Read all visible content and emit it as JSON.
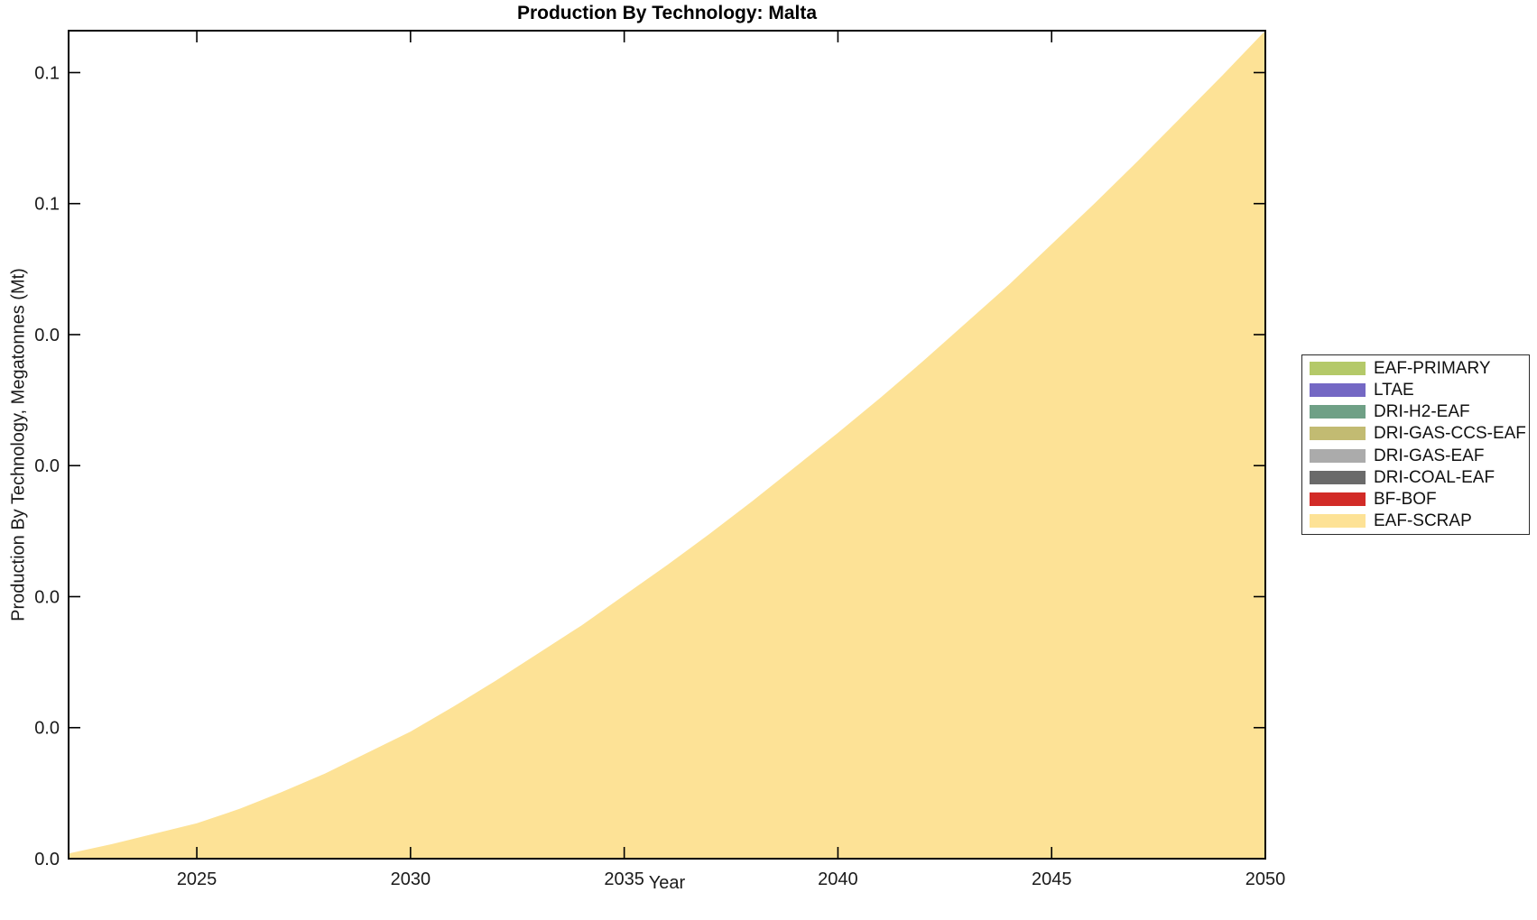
{
  "figure": {
    "title": "Production By Technology: Malta",
    "xlabel": "Year",
    "ylabel": "Production By Technology, Megatonnes (Mt)"
  },
  "colors": {
    "background": "#ffffff",
    "axis_line": "#000000",
    "tick_label": "#1a1a1a",
    "legend_border": "#2b2b2b"
  },
  "legend": {
    "position": "right-outside",
    "items": [
      {
        "label": "EAF-PRIMARY",
        "color": "#B4C969"
      },
      {
        "label": "LTAE",
        "color": "#7468C4"
      },
      {
        "label": "DRI-H2-EAF",
        "color": "#6FA086"
      },
      {
        "label": "DRI-GAS-CCS-EAF",
        "color": "#C2BB72"
      },
      {
        "label": "DRI-GAS-EAF",
        "color": "#ABABAB"
      },
      {
        "label": "DRI-COAL-EAF",
        "color": "#6A6A6A"
      },
      {
        "label": "BF-BOF",
        "color": "#D22B27"
      },
      {
        "label": "EAF-SCRAP",
        "color": "#FDE296"
      }
    ]
  },
  "chart_data": {
    "type": "area",
    "title": "Production By Technology: Malta",
    "xlabel": "Year",
    "ylabel": "Production By Technology, Megatonnes (Mt)",
    "x": [
      2022,
      2023,
      2024,
      2025,
      2026,
      2027,
      2028,
      2029,
      2030,
      2031,
      2032,
      2033,
      2034,
      2035,
      2036,
      2037,
      2038,
      2039,
      2040,
      2041,
      2042,
      2043,
      2044,
      2045,
      2046,
      2047,
      2048,
      2049,
      2050
    ],
    "series": [
      {
        "name": "EAF-PRIMARY",
        "color": "#B4C969",
        "values": [
          0,
          0,
          0,
          0,
          0,
          0,
          0,
          0,
          0,
          0,
          0,
          0,
          0,
          0,
          0,
          0,
          0,
          0,
          0,
          0,
          0,
          0,
          0,
          0,
          0,
          0,
          0,
          0,
          0
        ]
      },
      {
        "name": "LTAE",
        "color": "#7468C4",
        "values": [
          0,
          0,
          0,
          0,
          0,
          0,
          0,
          0,
          0,
          0,
          0,
          0,
          0,
          0,
          0,
          0,
          0,
          0,
          0,
          0,
          0,
          0,
          0,
          0,
          0,
          0,
          0,
          0,
          0
        ]
      },
      {
        "name": "DRI-H2-EAF",
        "color": "#6FA086",
        "values": [
          0,
          0,
          0,
          0,
          0,
          0,
          0,
          0,
          0,
          0,
          0,
          0,
          0,
          0,
          0,
          0,
          0,
          0,
          0,
          0,
          0,
          0,
          0,
          0,
          0,
          0,
          0,
          0,
          0
        ]
      },
      {
        "name": "DRI-GAS-CCS-EAF",
        "color": "#C2BB72",
        "values": [
          0,
          0,
          0,
          0,
          0,
          0,
          0,
          0,
          0,
          0,
          0,
          0,
          0,
          0,
          0,
          0,
          0,
          0,
          0,
          0,
          0,
          0,
          0,
          0,
          0,
          0,
          0,
          0,
          0
        ]
      },
      {
        "name": "DRI-GAS-EAF",
        "color": "#ABABAB",
        "values": [
          0,
          0,
          0,
          0,
          0,
          0,
          0,
          0,
          0,
          0,
          0,
          0,
          0,
          0,
          0,
          0,
          0,
          0,
          0,
          0,
          0,
          0,
          0,
          0,
          0,
          0,
          0,
          0,
          0
        ]
      },
      {
        "name": "DRI-COAL-EAF",
        "color": "#6A6A6A",
        "values": [
          0,
          0,
          0,
          0,
          0,
          0,
          0,
          0,
          0,
          0,
          0,
          0,
          0,
          0,
          0,
          0,
          0,
          0,
          0,
          0,
          0,
          0,
          0,
          0,
          0,
          0,
          0,
          0,
          0
        ]
      },
      {
        "name": "BF-BOF",
        "color": "#D22B27",
        "values": [
          0,
          0,
          0,
          0,
          0,
          0,
          0,
          0,
          0,
          0,
          0,
          0,
          0,
          0,
          0,
          0,
          0,
          0,
          0,
          0,
          0,
          0,
          0,
          0,
          0,
          0,
          0,
          0,
          0
        ]
      },
      {
        "name": "EAF-SCRAP",
        "color": "#FDE296",
        "values": [
          0.0004,
          0.0011,
          0.0019,
          0.0027,
          0.0038,
          0.0051,
          0.0065,
          0.0081,
          0.0097,
          0.0116,
          0.0136,
          0.0157,
          0.0178,
          0.0201,
          0.0224,
          0.0248,
          0.0273,
          0.0299,
          0.0325,
          0.0352,
          0.038,
          0.0409,
          0.0438,
          0.0469,
          0.05,
          0.0532,
          0.0565,
          0.0598,
          0.0632
        ]
      }
    ],
    "stack_bottom_to_top": [
      "EAF-SCRAP",
      "BF-BOF",
      "DRI-COAL-EAF",
      "DRI-GAS-EAF",
      "DRI-GAS-CCS-EAF",
      "DRI-H2-EAF",
      "LTAE",
      "EAF-PRIMARY"
    ],
    "xlim": [
      2022,
      2050
    ],
    "ylim": [
      0,
      0.0632
    ],
    "xticks": [
      2025,
      2030,
      2035,
      2040,
      2045,
      2050
    ],
    "yticks": {
      "values": [
        0,
        0.01,
        0.02,
        0.03,
        0.04,
        0.05,
        0.06
      ],
      "labels": [
        "0.0",
        "0.0",
        "0.0",
        "0.0",
        "0.0",
        "0.1",
        "0.1"
      ]
    },
    "grid": false,
    "legend_position": "right-outside"
  }
}
